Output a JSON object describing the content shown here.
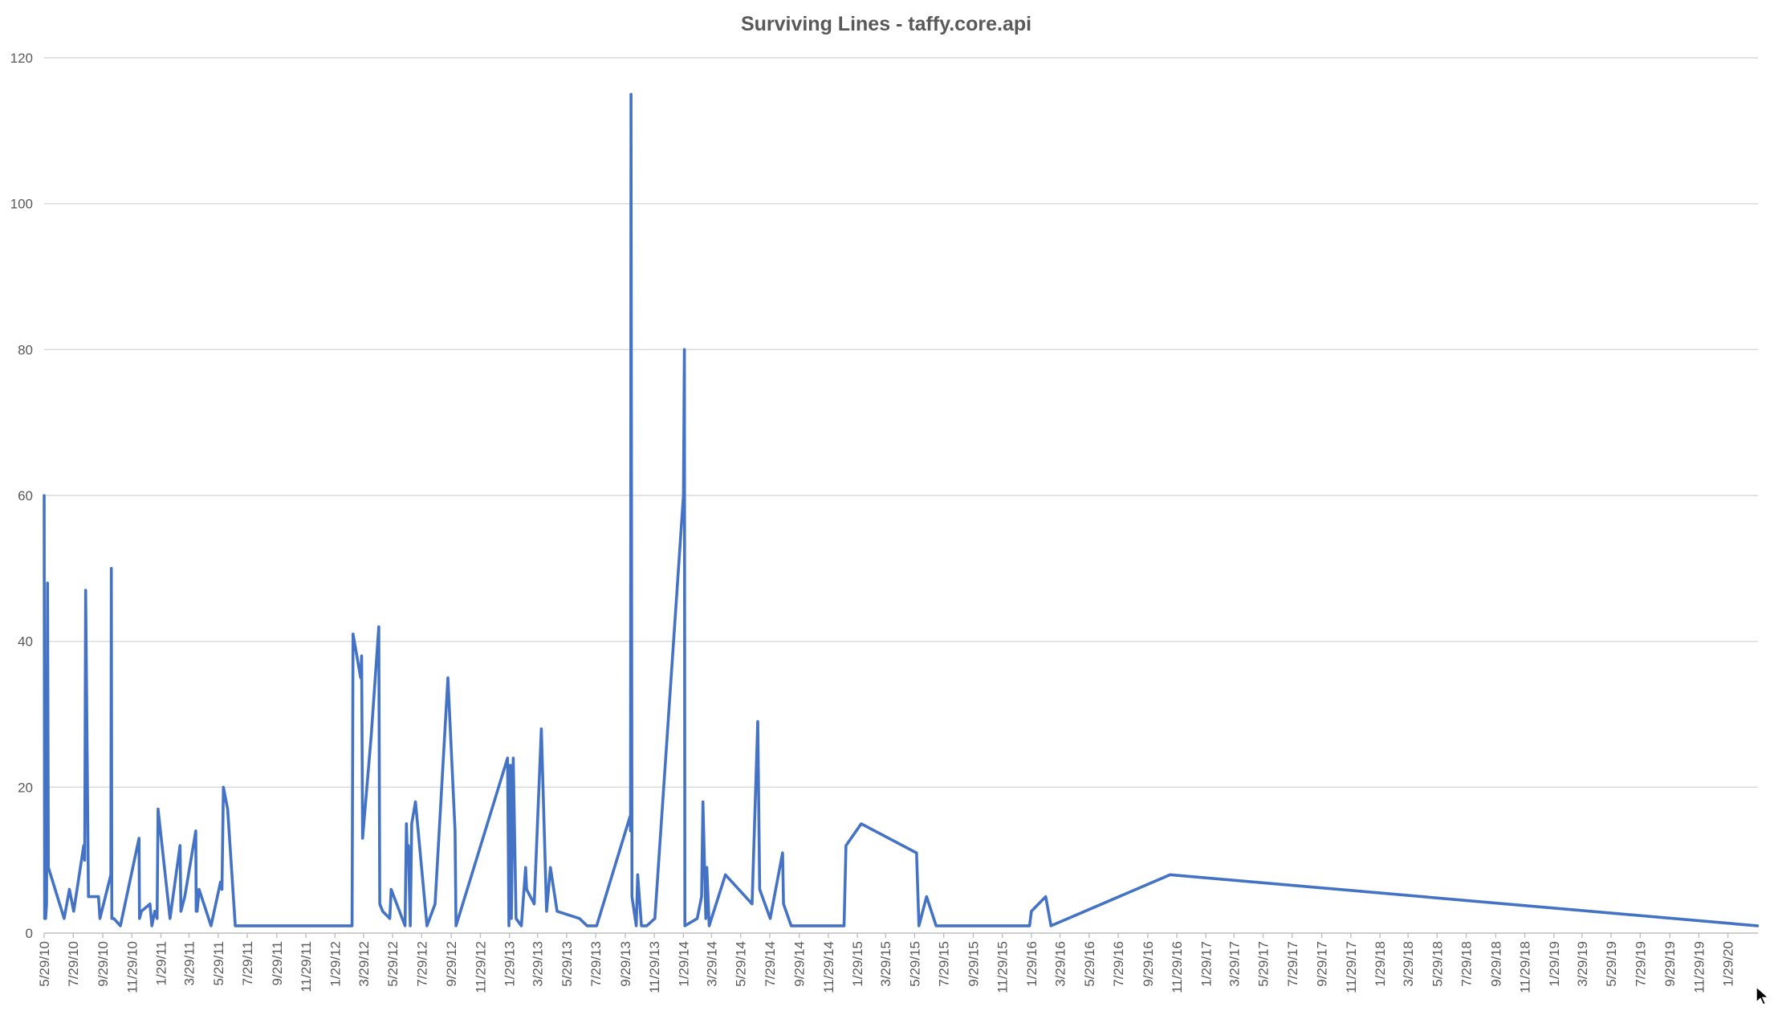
{
  "chart_data": {
    "type": "line",
    "title": "Surviving Lines - taffy.core.api",
    "xlabel": "",
    "ylabel": "",
    "ylim": [
      0,
      120
    ],
    "yticks": [
      "0",
      "20",
      "40",
      "60",
      "80",
      "100",
      "120"
    ],
    "xlim": [
      "2010-05-29",
      "2020-04-01"
    ],
    "grid": true,
    "legend": "none",
    "x_tick_labels": [
      "5/29/10",
      "7/29/10",
      "9/29/10",
      "11/29/10",
      "1/29/11",
      "3/29/11",
      "5/29/11",
      "7/29/11",
      "9/29/11",
      "11/29/11",
      "1/29/12",
      "3/29/12",
      "5/29/12",
      "7/29/12",
      "9/29/12",
      "11/29/12",
      "1/29/13",
      "3/29/13",
      "5/29/13",
      "7/29/13",
      "9/29/13",
      "11/29/13",
      "1/29/14",
      "3/29/14",
      "5/29/14",
      "7/29/14",
      "9/29/14",
      "11/29/14",
      "1/29/15",
      "3/29/15",
      "5/29/15",
      "7/29/15",
      "9/29/15",
      "11/29/15",
      "1/29/16",
      "3/29/16",
      "5/29/16",
      "7/29/16",
      "9/29/16",
      "11/29/16",
      "1/29/17",
      "3/29/17",
      "5/29/17",
      "7/29/17",
      "9/29/17",
      "11/29/17",
      "1/29/18",
      "3/29/18",
      "5/29/18",
      "7/29/18",
      "9/29/18",
      "11/29/18",
      "1/29/19",
      "3/29/19",
      "5/29/19",
      "7/29/19",
      "9/29/19",
      "11/29/19",
      "1/29/20"
    ],
    "series": [
      {
        "color": "#4472c4",
        "points": [
          [
            "2010-05-29",
            60
          ],
          [
            "2010-05-30",
            2
          ],
          [
            "2010-05-31",
            8
          ],
          [
            "2010-06-01",
            2
          ],
          [
            "2010-06-03",
            4
          ],
          [
            "2010-06-05",
            48
          ],
          [
            "2010-06-07",
            9
          ],
          [
            "2010-07-10",
            2
          ],
          [
            "2010-07-21",
            6
          ],
          [
            "2010-07-30",
            3
          ],
          [
            "2010-08-20",
            12
          ],
          [
            "2010-08-22",
            10
          ],
          [
            "2010-08-24",
            47
          ],
          [
            "2010-08-30",
            5
          ],
          [
            "2010-09-20",
            5
          ],
          [
            "2010-09-23",
            2
          ],
          [
            "2010-10-16",
            8
          ],
          [
            "2010-10-17",
            50
          ],
          [
            "2010-10-18",
            2
          ],
          [
            "2010-10-20",
            2
          ],
          [
            "2010-10-22",
            2
          ],
          [
            "2010-11-05",
            1
          ],
          [
            "2010-12-14",
            13
          ],
          [
            "2010-12-15",
            2
          ],
          [
            "2010-12-19",
            3
          ],
          [
            "2011-01-06",
            4
          ],
          [
            "2011-01-10",
            1
          ],
          [
            "2011-01-16",
            3
          ],
          [
            "2011-01-21",
            2
          ],
          [
            "2011-01-23",
            17
          ],
          [
            "2011-02-17",
            2
          ],
          [
            "2011-03-10",
            12
          ],
          [
            "2011-03-12",
            3
          ],
          [
            "2011-03-20",
            5
          ],
          [
            "2011-04-12",
            14
          ],
          [
            "2011-04-13",
            3
          ],
          [
            "2011-04-15",
            3
          ],
          [
            "2011-04-19",
            6
          ],
          [
            "2011-05-14",
            1
          ],
          [
            "2011-06-03",
            7
          ],
          [
            "2011-06-06",
            6
          ],
          [
            "2011-06-09",
            20
          ],
          [
            "2011-06-18",
            17
          ],
          [
            "2011-07-04",
            1
          ],
          [
            "2011-09-17",
            1
          ],
          [
            "2012-03-05",
            1
          ],
          [
            "2012-03-07",
            41
          ],
          [
            "2012-03-23",
            35
          ],
          [
            "2012-03-25",
            38
          ],
          [
            "2012-03-27",
            13
          ],
          [
            "2012-04-14",
            27
          ],
          [
            "2012-04-30",
            42
          ],
          [
            "2012-05-02",
            4
          ],
          [
            "2012-05-08",
            3
          ],
          [
            "2012-05-23",
            2
          ],
          [
            "2012-05-26",
            6
          ],
          [
            "2012-06-24",
            1
          ],
          [
            "2012-06-27",
            15
          ],
          [
            "2012-06-29",
            10
          ],
          [
            "2012-07-01",
            12
          ],
          [
            "2012-07-05",
            1
          ],
          [
            "2012-07-08",
            15
          ],
          [
            "2012-07-16",
            18
          ],
          [
            "2012-08-09",
            1
          ],
          [
            "2012-08-26",
            4
          ],
          [
            "2012-09-22",
            35
          ],
          [
            "2012-10-07",
            14
          ],
          [
            "2012-10-09",
            1
          ],
          [
            "2013-01-25",
            24
          ],
          [
            "2013-01-28",
            1
          ],
          [
            "2013-01-31",
            23
          ],
          [
            "2013-02-02",
            2
          ],
          [
            "2013-02-06",
            24
          ],
          [
            "2013-02-12",
            2
          ],
          [
            "2013-02-23",
            1
          ],
          [
            "2013-03-04",
            9
          ],
          [
            "2013-03-06",
            6
          ],
          [
            "2013-03-22",
            4
          ],
          [
            "2013-04-06",
            28
          ],
          [
            "2013-04-17",
            3
          ],
          [
            "2013-04-25",
            9
          ],
          [
            "2013-05-09",
            3
          ],
          [
            "2013-06-25",
            2
          ],
          [
            "2013-07-11",
            1
          ],
          [
            "2013-07-31",
            1
          ],
          [
            "2013-10-09",
            16
          ],
          [
            "2013-10-10",
            14
          ],
          [
            "2013-10-11",
            115
          ],
          [
            "2013-10-13",
            5
          ],
          [
            "2013-10-22",
            1
          ],
          [
            "2013-10-25",
            8
          ],
          [
            "2013-11-02",
            1
          ],
          [
            "2013-11-13",
            1
          ],
          [
            "2013-11-30",
            2
          ],
          [
            "2014-01-29",
            60
          ],
          [
            "2014-01-31",
            80
          ],
          [
            "2014-02-01",
            1
          ],
          [
            "2014-02-27",
            2
          ],
          [
            "2014-03-08",
            5
          ],
          [
            "2014-03-11",
            18
          ],
          [
            "2014-03-17",
            2
          ],
          [
            "2014-03-19",
            9
          ],
          [
            "2014-03-24",
            1
          ],
          [
            "2014-04-27",
            8
          ],
          [
            "2014-06-22",
            4
          ],
          [
            "2014-07-04",
            29
          ],
          [
            "2014-07-08",
            6
          ],
          [
            "2014-07-30",
            2
          ],
          [
            "2014-08-25",
            11
          ],
          [
            "2014-08-27",
            4
          ],
          [
            "2014-09-12",
            1
          ],
          [
            "2015-01-01",
            1
          ],
          [
            "2015-01-05",
            12
          ],
          [
            "2015-02-06",
            15
          ],
          [
            "2015-06-02",
            11
          ],
          [
            "2015-06-07",
            1
          ],
          [
            "2015-06-23",
            5
          ],
          [
            "2015-07-13",
            1
          ],
          [
            "2016-01-25",
            1
          ],
          [
            "2016-01-29",
            3
          ],
          [
            "2016-02-28",
            5
          ],
          [
            "2016-03-10",
            1
          ],
          [
            "2016-11-15",
            8
          ],
          [
            "2020-03-31",
            1
          ]
        ]
      }
    ]
  }
}
